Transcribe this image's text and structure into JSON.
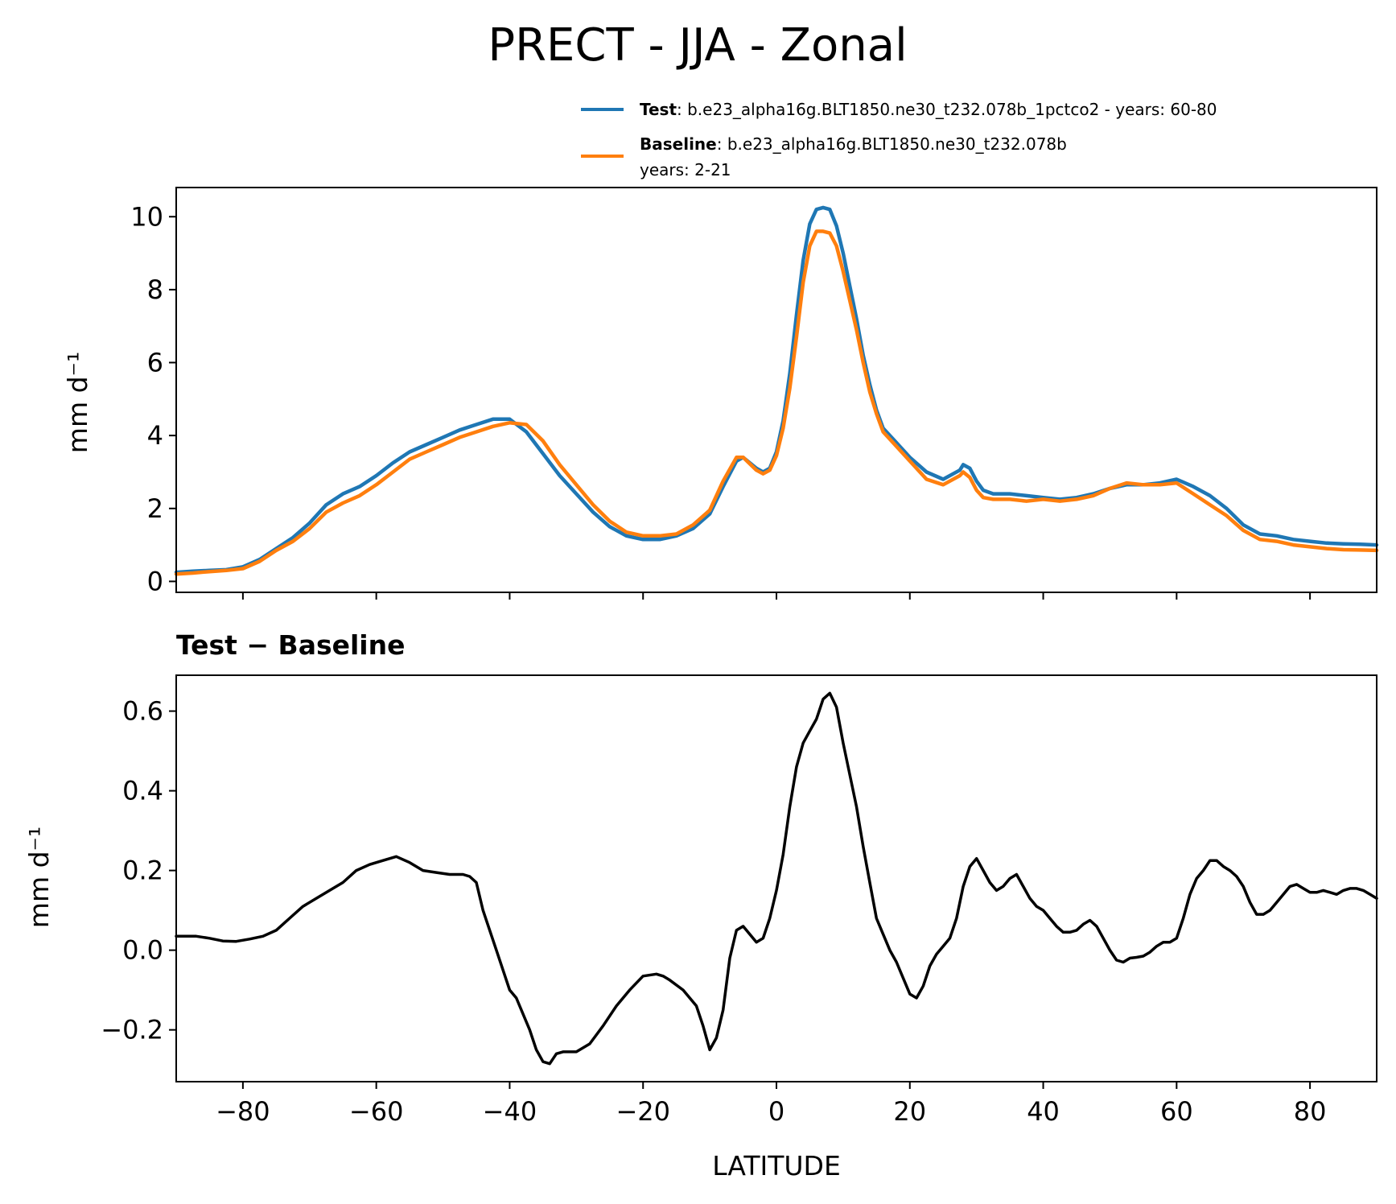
{
  "figure_title": "PRECT - JJA - Zonal",
  "legend": {
    "test_label": "Test",
    "test_text": ": b.e23_alpha16g.BLT1850.ne30_t232.078b_1pctco2 - years: 60-80",
    "baseline_label": "Baseline",
    "baseline_text": ": b.e23_alpha16g.BLT1850.ne30_t232.078b",
    "baseline_years": "years: 2-21"
  },
  "colors": {
    "test": "#1f77b4",
    "baseline": "#ff7f0e",
    "diff": "#000000"
  },
  "chart_data": [
    {
      "type": "line",
      "title": "",
      "xlabel": "",
      "ylabel": "mm d⁻¹",
      "xlim": [
        -90,
        90
      ],
      "ylim": [
        -0.3,
        10.8
      ],
      "yticks": [
        0,
        2,
        4,
        6,
        8,
        10
      ],
      "ytick_labels": [
        "0",
        "2",
        "4",
        "6",
        "8",
        "10"
      ],
      "xticks": [
        -80,
        -60,
        -40,
        -20,
        0,
        20,
        40,
        60,
        80
      ],
      "legend_position": "top-right, above plot",
      "x": [
        -90,
        -87.5,
        -85,
        -82.5,
        -80,
        -77.5,
        -75,
        -72.5,
        -70,
        -67.5,
        -65,
        -62.5,
        -60,
        -57.5,
        -55,
        -52.5,
        -50,
        -47.5,
        -45,
        -42.5,
        -40,
        -37.5,
        -35,
        -32.5,
        -30,
        -27.5,
        -25,
        -22.5,
        -20,
        -17.5,
        -15,
        -12.5,
        -10,
        -8,
        -6,
        -5,
        -3,
        -2,
        -1,
        0,
        1,
        2,
        3,
        4,
        5,
        6,
        7,
        8,
        9,
        10,
        11,
        12,
        13,
        14,
        15,
        16,
        17.5,
        20,
        22.5,
        25,
        27.5,
        28,
        29,
        30,
        31,
        32.5,
        35,
        37.5,
        40,
        42.5,
        45,
        47.5,
        50,
        52.5,
        55,
        57.5,
        60,
        62.5,
        65,
        67.5,
        70,
        72.5,
        75,
        77.5,
        80,
        82.5,
        85,
        87.5,
        90
      ],
      "series": [
        {
          "name": "Test",
          "values": [
            0.25,
            0.28,
            0.3,
            0.32,
            0.4,
            0.6,
            0.9,
            1.2,
            1.6,
            2.1,
            2.4,
            2.6,
            2.9,
            3.25,
            3.55,
            3.75,
            3.95,
            4.15,
            4.3,
            4.45,
            4.45,
            4.1,
            3.5,
            2.9,
            2.4,
            1.9,
            1.5,
            1.25,
            1.15,
            1.15,
            1.25,
            1.45,
            1.85,
            2.6,
            3.3,
            3.4,
            3.1,
            3.0,
            3.1,
            3.55,
            4.4,
            5.7,
            7.3,
            8.8,
            9.8,
            10.2,
            10.25,
            10.2,
            9.75,
            9.0,
            8.1,
            7.2,
            6.2,
            5.4,
            4.7,
            4.2,
            3.9,
            3.4,
            3.0,
            2.8,
            3.05,
            3.2,
            3.1,
            2.75,
            2.5,
            2.4,
            2.4,
            2.35,
            2.3,
            2.25,
            2.3,
            2.4,
            2.55,
            2.65,
            2.65,
            2.7,
            2.8,
            2.6,
            2.35,
            2.0,
            1.55,
            1.3,
            1.25,
            1.15,
            1.1,
            1.05,
            1.03,
            1.02,
            1.0
          ]
        },
        {
          "name": "Baseline",
          "values": [
            0.2,
            0.23,
            0.27,
            0.3,
            0.35,
            0.55,
            0.85,
            1.1,
            1.45,
            1.9,
            2.15,
            2.35,
            2.65,
            3.0,
            3.35,
            3.55,
            3.75,
            3.95,
            4.1,
            4.25,
            4.35,
            4.3,
            3.85,
            3.2,
            2.65,
            2.1,
            1.65,
            1.35,
            1.25,
            1.25,
            1.3,
            1.55,
            1.95,
            2.75,
            3.4,
            3.4,
            3.05,
            2.95,
            3.05,
            3.45,
            4.2,
            5.3,
            6.7,
            8.2,
            9.2,
            9.6,
            9.6,
            9.55,
            9.2,
            8.5,
            7.7,
            6.9,
            6.0,
            5.2,
            4.6,
            4.1,
            3.8,
            3.3,
            2.8,
            2.65,
            2.9,
            3.0,
            2.85,
            2.5,
            2.3,
            2.25,
            2.25,
            2.2,
            2.25,
            2.2,
            2.25,
            2.35,
            2.55,
            2.7,
            2.65,
            2.65,
            2.7,
            2.4,
            2.1,
            1.8,
            1.4,
            1.15,
            1.1,
            1.0,
            0.95,
            0.9,
            0.87,
            0.86,
            0.85
          ]
        }
      ]
    },
    {
      "type": "line",
      "title": "Test − Baseline",
      "xlabel": "LATITUDE",
      "ylabel": "mm d⁻¹",
      "xlim": [
        -90,
        90
      ],
      "ylim": [
        -0.33,
        0.69
      ],
      "yticks": [
        -0.2,
        0.0,
        0.2,
        0.4,
        0.6
      ],
      "ytick_labels": [
        "−0.2",
        "0.0",
        "0.2",
        "0.4",
        "0.6"
      ],
      "xticks": [
        -80,
        -60,
        -40,
        -20,
        0,
        20,
        40,
        60,
        80
      ],
      "xtick_labels": [
        "−80",
        "−60",
        "−40",
        "−20",
        "0",
        "20",
        "40",
        "60",
        "80"
      ],
      "x": [
        -90,
        -87,
        -85,
        -83,
        -81,
        -79,
        -77,
        -75,
        -73,
        -71,
        -69,
        -67,
        -65,
        -63,
        -61,
        -59,
        -57,
        -55,
        -53,
        -51,
        -49,
        -47,
        -46,
        -45,
        -44,
        -42,
        -40,
        -39,
        -38,
        -37,
        -36,
        -35,
        -34,
        -33,
        -32,
        -31,
        -30,
        -28,
        -26,
        -24,
        -22,
        -20,
        -18,
        -17,
        -16,
        -14,
        -12,
        -11,
        -10,
        -9,
        -8,
        -7,
        -6,
        -5,
        -4,
        -3,
        -2,
        -1,
        0,
        1,
        2,
        3,
        4,
        5,
        6,
        7,
        8,
        9,
        10,
        11,
        12,
        13,
        14,
        15,
        16,
        17,
        18,
        19,
        20,
        21,
        22,
        23,
        24,
        25,
        26,
        27,
        28,
        29,
        30,
        31,
        32,
        33,
        34,
        35,
        36,
        37,
        38,
        39,
        40,
        41,
        42,
        43,
        44,
        45,
        46,
        47,
        48,
        49,
        50,
        51,
        52,
        53,
        54,
        55,
        56,
        57,
        58,
        59,
        60,
        61,
        62,
        63,
        64,
        65,
        66,
        67,
        68,
        69,
        70,
        71,
        72,
        73,
        74,
        75,
        76,
        77,
        78,
        79,
        80,
        81,
        82,
        83,
        84,
        85,
        86,
        87,
        88,
        89,
        90
      ],
      "series": [
        {
          "name": "",
          "values": [
            0.035,
            0.035,
            0.03,
            0.023,
            0.022,
            0.028,
            0.035,
            0.05,
            0.08,
            0.11,
            0.13,
            0.15,
            0.17,
            0.2,
            0.215,
            0.225,
            0.235,
            0.22,
            0.2,
            0.195,
            0.19,
            0.19,
            0.185,
            0.17,
            0.1,
            0.0,
            -0.1,
            -0.12,
            -0.16,
            -0.2,
            -0.25,
            -0.28,
            -0.285,
            -0.26,
            -0.255,
            -0.255,
            -0.255,
            -0.235,
            -0.19,
            -0.14,
            -0.1,
            -0.065,
            -0.06,
            -0.065,
            -0.075,
            -0.1,
            -0.14,
            -0.19,
            -0.25,
            -0.22,
            -0.15,
            -0.02,
            0.05,
            0.06,
            0.04,
            0.02,
            0.03,
            0.08,
            0.15,
            0.24,
            0.36,
            0.46,
            0.52,
            0.55,
            0.58,
            0.63,
            0.645,
            0.61,
            0.52,
            0.44,
            0.36,
            0.26,
            0.17,
            0.08,
            0.04,
            0.0,
            -0.03,
            -0.07,
            -0.11,
            -0.12,
            -0.09,
            -0.04,
            -0.01,
            0.01,
            0.03,
            0.08,
            0.16,
            0.21,
            0.23,
            0.2,
            0.17,
            0.15,
            0.16,
            0.18,
            0.19,
            0.16,
            0.13,
            0.11,
            0.1,
            0.08,
            0.06,
            0.045,
            0.045,
            0.05,
            0.065,
            0.075,
            0.06,
            0.03,
            0.0,
            -0.025,
            -0.03,
            -0.02,
            -0.018,
            -0.015,
            -0.005,
            0.01,
            0.02,
            0.02,
            0.03,
            0.08,
            0.14,
            0.18,
            0.2,
            0.225,
            0.225,
            0.21,
            0.2,
            0.185,
            0.16,
            0.12,
            0.09,
            0.09,
            0.1,
            0.12,
            0.14,
            0.16,
            0.165,
            0.155,
            0.145,
            0.145,
            0.15,
            0.145,
            0.14,
            0.15,
            0.155,
            0.155,
            0.15,
            0.14,
            0.13
          ]
        }
      ]
    }
  ]
}
